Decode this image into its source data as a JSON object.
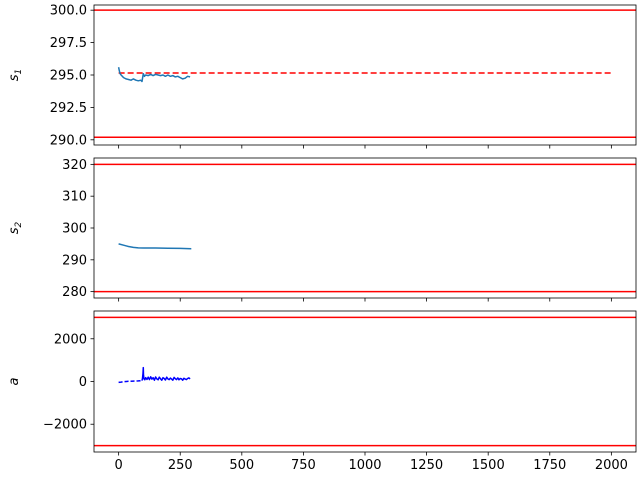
{
  "chart_data": [
    {
      "type": "line",
      "ylabel": "s",
      "ylabel_sub": "1",
      "xlim": [
        -100,
        2100
      ],
      "ylim": [
        289.6,
        300.4
      ],
      "yticks": [
        "290.0",
        "292.5",
        "295.0",
        "297.5",
        "300.0"
      ],
      "ytick_values": [
        290.0,
        292.5,
        295.0,
        297.5,
        300.0
      ],
      "show_xtick_labels": false,
      "bounds": [
        290.2,
        300.0
      ],
      "bound_color": "#ff0000",
      "reference": {
        "x": [
          0,
          2000
        ],
        "y": 295.15,
        "style": "dashed",
        "color": "#ff0000"
      },
      "series": [
        {
          "style": "solid",
          "color": "#1f77b4",
          "x": [
            0,
            3,
            6,
            10,
            15,
            20,
            30,
            40,
            50,
            60,
            70,
            80,
            90,
            95,
            100,
            105,
            110,
            120,
            130,
            140,
            150,
            160,
            170,
            180,
            190,
            200,
            210,
            220,
            230,
            240,
            250,
            260,
            270,
            280,
            290
          ],
          "y": [
            295.6,
            295.3,
            295.1,
            295.0,
            294.9,
            294.8,
            294.7,
            294.65,
            294.6,
            294.7,
            294.6,
            294.55,
            294.6,
            294.5,
            295.1,
            294.9,
            295.0,
            294.95,
            295.05,
            294.95,
            295.05,
            295.0,
            294.95,
            295.0,
            294.9,
            295.0,
            294.9,
            294.95,
            294.85,
            294.9,
            294.8,
            294.7,
            294.75,
            294.9,
            294.85
          ]
        }
      ]
    },
    {
      "type": "line",
      "ylabel": "s",
      "ylabel_sub": "2",
      "xlim": [
        -100,
        2100
      ],
      "ylim": [
        278,
        322
      ],
      "yticks": [
        "280",
        "290",
        "300",
        "310",
        "320"
      ],
      "ytick_values": [
        280,
        290,
        300,
        310,
        320
      ],
      "show_xtick_labels": false,
      "bounds": [
        280,
        320
      ],
      "bound_color": "#ff0000",
      "series": [
        {
          "style": "solid",
          "color": "#1f77b4",
          "x": [
            0,
            20,
            40,
            60,
            80,
            100,
            120,
            150,
            200,
            250,
            295
          ],
          "y": [
            295.0,
            294.6,
            294.2,
            293.9,
            293.75,
            293.7,
            293.7,
            293.7,
            293.65,
            293.6,
            293.5
          ]
        }
      ]
    },
    {
      "type": "line",
      "ylabel": "a",
      "xlim": [
        -100,
        2100
      ],
      "ylim": [
        -3300,
        3300
      ],
      "yticks": [
        "−2000",
        "0",
        "2000"
      ],
      "ytick_values": [
        -2000,
        0,
        2000
      ],
      "xticks": [
        "0",
        "250",
        "500",
        "750",
        "1000",
        "1250",
        "1500",
        "1750",
        "2000"
      ],
      "xtick_values": [
        0,
        250,
        500,
        750,
        1000,
        1250,
        1500,
        1750,
        2000
      ],
      "show_xtick_labels": true,
      "bounds": [
        -3000,
        3000
      ],
      "bound_color": "#ff0000",
      "series": [
        {
          "style": "dashed",
          "color": "#0000ff",
          "x": [
            0,
            10,
            20,
            40,
            60,
            80,
            95
          ],
          "y": [
            -40,
            -30,
            -10,
            10,
            20,
            30,
            40
          ]
        },
        {
          "style": "solid",
          "color": "#0000ff",
          "x": [
            95,
            97,
            99,
            100,
            101,
            103,
            106,
            110,
            115,
            120,
            125,
            130,
            135,
            140,
            145,
            150,
            155,
            160,
            165,
            170,
            175,
            180,
            185,
            190,
            195,
            200,
            205,
            210,
            215,
            220,
            225,
            230,
            235,
            240,
            245,
            250,
            255,
            260,
            265,
            270,
            275,
            280,
            285,
            290
          ],
          "y": [
            40,
            150,
            380,
            650,
            300,
            120,
            80,
            180,
            100,
            200,
            90,
            220,
            110,
            180,
            60,
            210,
            120,
            80,
            200,
            130,
            60,
            180,
            140,
            70,
            200,
            120,
            90,
            160,
            110,
            60,
            190,
            130,
            90,
            170,
            80,
            140,
            120,
            60,
            150,
            110,
            90,
            140,
            170,
            120
          ]
        }
      ]
    }
  ]
}
